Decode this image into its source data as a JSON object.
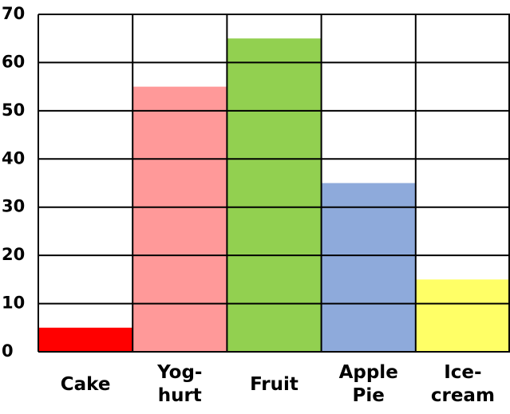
{
  "chart_data": {
    "type": "bar",
    "categories": [
      "Cake",
      "Yog-\nhurt",
      "Fruit",
      "Apple\nPie",
      "Ice-\ncream"
    ],
    "values": [
      5,
      55,
      65,
      35,
      15
    ],
    "colors": [
      "#ff0000",
      "#ff9999",
      "#92d050",
      "#8eaadb",
      "#ffff66"
    ],
    "ylim": [
      0,
      70
    ],
    "yticks": [
      0,
      10,
      20,
      30,
      40,
      50,
      60,
      70
    ],
    "grid": true
  }
}
